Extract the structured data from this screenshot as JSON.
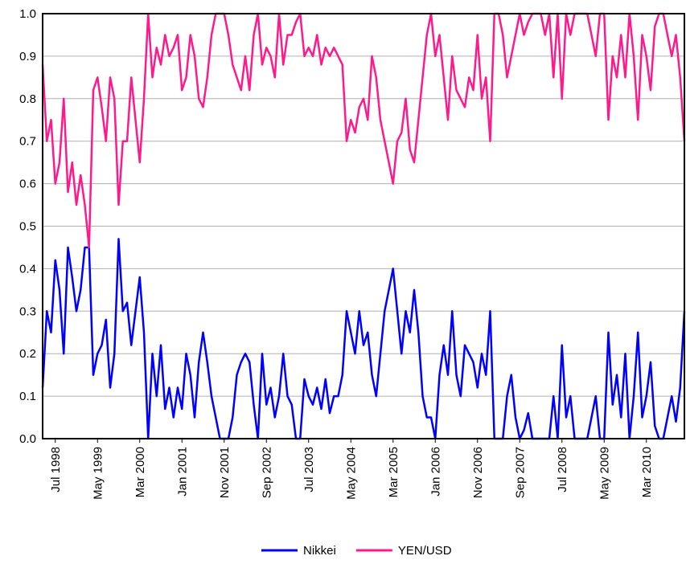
{
  "chart_data": {
    "type": "line",
    "categories": [
      null,
      null,
      null,
      "Jul 1998",
      null,
      null,
      null,
      null,
      null,
      null,
      null,
      null,
      null,
      "May 1999",
      null,
      null,
      null,
      null,
      null,
      null,
      null,
      null,
      null,
      "Mar 2000",
      null,
      null,
      null,
      null,
      null,
      null,
      null,
      null,
      null,
      "Jan 2001",
      null,
      null,
      null,
      null,
      null,
      null,
      null,
      null,
      null,
      "Nov 2001",
      null,
      null,
      null,
      null,
      null,
      null,
      null,
      null,
      null,
      "Sep 2002",
      null,
      null,
      null,
      null,
      null,
      null,
      null,
      null,
      null,
      "Jul 2003",
      null,
      null,
      null,
      null,
      null,
      null,
      null,
      null,
      null,
      "May 2004",
      null,
      null,
      null,
      null,
      null,
      null,
      null,
      null,
      null,
      "Mar 2005",
      null,
      null,
      null,
      null,
      null,
      null,
      null,
      null,
      null,
      "Jan 2006",
      null,
      null,
      null,
      null,
      null,
      null,
      null,
      null,
      null,
      "Nov 2006",
      null,
      null,
      null,
      null,
      null,
      null,
      null,
      null,
      null,
      "Sep 2007",
      null,
      null,
      null,
      null,
      null,
      null,
      null,
      null,
      null,
      "Jul 2008",
      null,
      null,
      null,
      null,
      null,
      null,
      null,
      null,
      null,
      "May 2009",
      null,
      null,
      null,
      null,
      null,
      null,
      null,
      null,
      null,
      "Mar 2010",
      null,
      null,
      null,
      null,
      null,
      null,
      null,
      null,
      null
    ],
    "series": [
      {
        "name": "Nikkei",
        "color": "#0000ff",
        "values": [
          0.12,
          0.3,
          0.25,
          0.42,
          0.35,
          0.2,
          0.45,
          0.38,
          0.3,
          0.35,
          0.45,
          0.45,
          0.15,
          0.2,
          0.22,
          0.28,
          0.12,
          0.2,
          0.47,
          0.3,
          0.32,
          0.22,
          0.3,
          0.38,
          0.25,
          0.0,
          0.2,
          0.1,
          0.22,
          0.07,
          0.12,
          0.05,
          0.12,
          0.07,
          0.2,
          0.15,
          0.05,
          0.18,
          0.25,
          0.18,
          0.1,
          0.05,
          0.0,
          0.0,
          0.0,
          0.05,
          0.15,
          0.18,
          0.2,
          0.18,
          0.08,
          0.0,
          0.2,
          0.08,
          0.12,
          0.05,
          0.1,
          0.2,
          0.1,
          0.08,
          0.0,
          0.0,
          0.14,
          0.1,
          0.08,
          0.12,
          0.07,
          0.14,
          0.06,
          0.1,
          0.1,
          0.15,
          0.3,
          0.25,
          0.2,
          0.3,
          0.22,
          0.25,
          0.15,
          0.1,
          0.2,
          0.3,
          0.35,
          0.4,
          0.3,
          0.2,
          0.3,
          0.25,
          0.35,
          0.25,
          0.1,
          0.05,
          0.05,
          0.0,
          0.15,
          0.22,
          0.15,
          0.3,
          0.15,
          0.1,
          0.22,
          0.2,
          0.18,
          0.12,
          0.2,
          0.15,
          0.3,
          0.0,
          0.0,
          0.0,
          0.1,
          0.15,
          0.05,
          0.0,
          0.02,
          0.06,
          0.0,
          0.0,
          0.0,
          0.0,
          0.0,
          0.1,
          0.0,
          0.22,
          0.05,
          0.1,
          0.0,
          0.0,
          0.0,
          0.0,
          0.05,
          0.1,
          0.0,
          0.0,
          0.25,
          0.08,
          0.15,
          0.05,
          0.2,
          0.0,
          0.1,
          0.25,
          0.05,
          0.1,
          0.18,
          0.03,
          0.0,
          0.0,
          0.05,
          0.1,
          0.04,
          0.12,
          0.3
        ]
      },
      {
        "name": "YEN/USD",
        "color": "#ff1a8c",
        "values": [
          0.88,
          0.7,
          0.75,
          0.6,
          0.65,
          0.8,
          0.58,
          0.65,
          0.55,
          0.62,
          0.55,
          0.45,
          0.82,
          0.85,
          0.78,
          0.7,
          0.85,
          0.8,
          0.55,
          0.7,
          0.7,
          0.85,
          0.75,
          0.65,
          0.8,
          1.0,
          0.85,
          0.92,
          0.88,
          0.95,
          0.9,
          0.92,
          0.95,
          0.82,
          0.85,
          0.95,
          0.9,
          0.8,
          0.78,
          0.85,
          0.95,
          1.0,
          1.0,
          1.0,
          0.95,
          0.88,
          0.85,
          0.82,
          0.9,
          0.82,
          0.95,
          1.0,
          0.88,
          0.92,
          0.9,
          0.85,
          1.0,
          0.88,
          0.95,
          0.95,
          0.98,
          1.0,
          0.9,
          0.92,
          0.9,
          0.95,
          0.88,
          0.92,
          0.9,
          0.92,
          0.9,
          0.88,
          0.7,
          0.75,
          0.72,
          0.78,
          0.8,
          0.75,
          0.9,
          0.85,
          0.75,
          0.7,
          0.65,
          0.6,
          0.7,
          0.72,
          0.8,
          0.68,
          0.65,
          0.75,
          0.85,
          0.95,
          1.0,
          0.9,
          0.95,
          0.85,
          0.75,
          0.9,
          0.82,
          0.8,
          0.78,
          0.85,
          0.82,
          0.95,
          0.8,
          0.85,
          0.7,
          1.0,
          1.0,
          0.95,
          0.85,
          0.9,
          0.95,
          1.0,
          0.95,
          0.98,
          1.0,
          1.0,
          1.0,
          0.95,
          1.0,
          0.85,
          1.0,
          0.8,
          1.0,
          0.95,
          1.0,
          1.0,
          1.0,
          1.0,
          0.95,
          0.9,
          1.0,
          1.0,
          0.75,
          0.9,
          0.85,
          0.95,
          0.85,
          1.0,
          0.9,
          0.75,
          0.95,
          0.9,
          0.82,
          0.97,
          1.0,
          1.0,
          0.95,
          0.9,
          0.95,
          0.85,
          0.7
        ]
      }
    ],
    "ylim": [
      0,
      1
    ],
    "yticks": [
      {
        "value": 0,
        "label": "0.0"
      },
      0.1,
      0.2,
      0.3,
      0.4,
      0.5,
      0.6,
      0.7,
      0.8,
      0.9,
      {
        "value": 1,
        "label": "1.0"
      }
    ],
    "grid": true,
    "legend": "bottom"
  }
}
